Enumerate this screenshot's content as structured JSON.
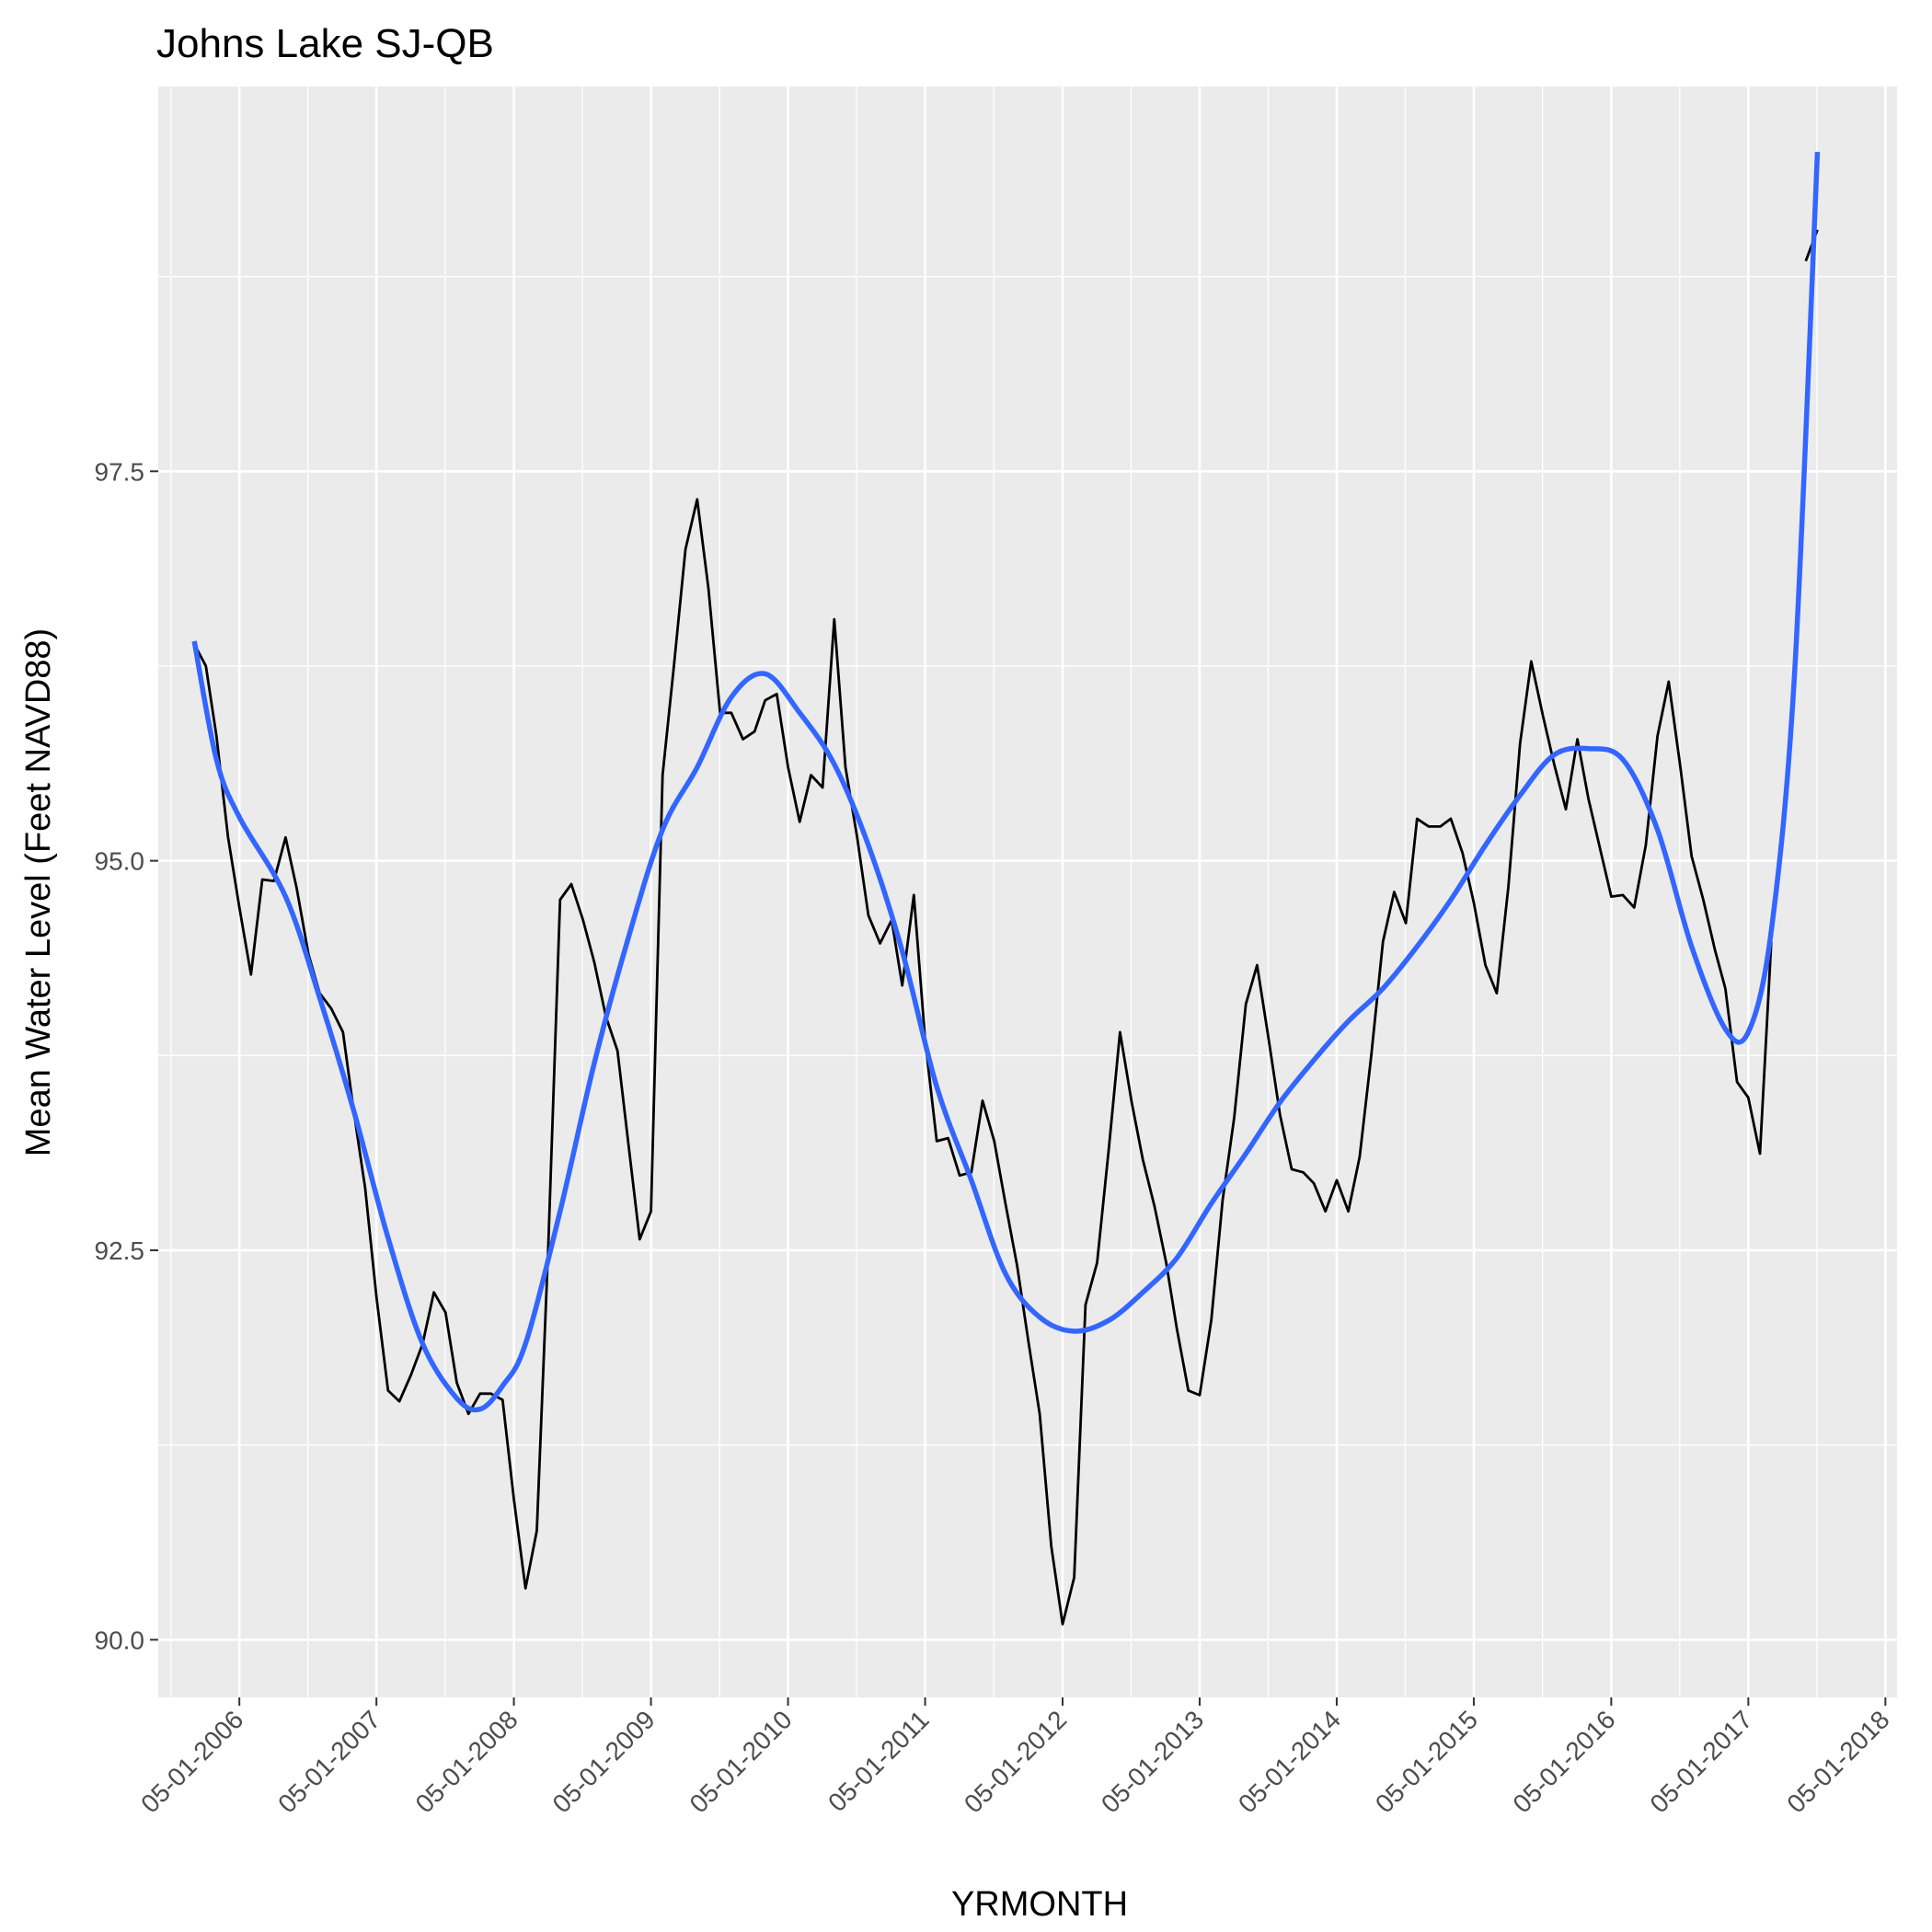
{
  "chart_data": {
    "type": "line",
    "title": "Johns Lake SJ-QB",
    "xlabel": "YRMONTH",
    "ylabel": "Mean Water Level (Feet NAVD88)",
    "x_range": [
      "2005-09-27",
      "2018-06-01"
    ],
    "ylim": [
      89.63,
      99.97
    ],
    "yticks": [
      90.0,
      92.5,
      95.0,
      97.5
    ],
    "xticks": [
      {
        "date": "2006-05-01",
        "label": "05-01-2006"
      },
      {
        "date": "2007-05-01",
        "label": "05-01-2007"
      },
      {
        "date": "2008-05-01",
        "label": "05-01-2008"
      },
      {
        "date": "2009-05-01",
        "label": "05-01-2009"
      },
      {
        "date": "2010-05-01",
        "label": "05-01-2010"
      },
      {
        "date": "2011-05-01",
        "label": "05-01-2011"
      },
      {
        "date": "2012-05-01",
        "label": "05-01-2012"
      },
      {
        "date": "2013-05-01",
        "label": "05-01-2013"
      },
      {
        "date": "2014-05-01",
        "label": "05-01-2014"
      },
      {
        "date": "2015-05-01",
        "label": "05-01-2015"
      },
      {
        "date": "2016-05-01",
        "label": "05-01-2016"
      },
      {
        "date": "2017-05-01",
        "label": "05-01-2017"
      },
      {
        "date": "2018-05-01",
        "label": "05-01-2018"
      }
    ],
    "grid": true,
    "background_color": "#EBEBEB",
    "series": [
      {
        "color": "#000000",
        "style": "line",
        "segments": [
          [
            [
              "2006-01-01",
              96.39
            ],
            [
              "2006-02-01",
              96.25
            ],
            [
              "2006-03-01",
              95.8
            ],
            [
              "2006-04-01",
              95.15
            ],
            [
              "2006-05-01",
              94.7
            ],
            [
              "2006-06-01",
              94.27
            ],
            [
              "2006-07-01",
              94.88
            ],
            [
              "2006-08-01",
              94.87
            ],
            [
              "2006-09-01",
              95.15
            ],
            [
              "2006-10-01",
              94.82
            ],
            [
              "2006-11-01",
              94.4
            ],
            [
              "2006-12-01",
              94.15
            ],
            [
              "2007-01-01",
              94.05
            ],
            [
              "2007-02-01",
              93.9
            ],
            [
              "2007-03-01",
              93.4
            ],
            [
              "2007-04-01",
              92.9
            ],
            [
              "2007-05-01",
              92.2
            ],
            [
              "2007-06-01",
              91.6
            ],
            [
              "2007-07-01",
              91.53
            ],
            [
              "2007-08-01",
              91.7
            ],
            [
              "2007-09-01",
              91.9
            ],
            [
              "2007-10-01",
              92.23
            ],
            [
              "2007-11-01",
              92.1
            ],
            [
              "2007-12-01",
              91.65
            ],
            [
              "2008-01-01",
              91.45
            ],
            [
              "2008-02-01",
              91.58
            ],
            [
              "2008-03-01",
              91.58
            ],
            [
              "2008-04-01",
              91.54
            ],
            [
              "2008-05-01",
              90.9
            ],
            [
              "2008-06-01",
              90.33
            ],
            [
              "2008-07-01",
              90.7
            ],
            [
              "2008-08-01",
              92.55
            ],
            [
              "2008-09-01",
              94.75
            ],
            [
              "2008-10-01",
              94.85
            ],
            [
              "2008-11-01",
              94.62
            ],
            [
              "2008-12-01",
              94.35
            ],
            [
              "2009-01-01",
              94.0
            ],
            [
              "2009-02-01",
              93.78
            ],
            [
              "2009-03-01",
              93.2
            ],
            [
              "2009-04-01",
              92.57
            ],
            [
              "2009-05-01",
              92.75
            ],
            [
              "2009-06-01",
              95.55
            ],
            [
              "2009-07-01",
              96.25
            ],
            [
              "2009-08-01",
              97.0
            ],
            [
              "2009-09-01",
              97.32
            ],
            [
              "2009-10-01",
              96.75
            ],
            [
              "2009-11-01",
              95.95
            ],
            [
              "2009-12-01",
              95.95
            ],
            [
              "2010-01-01",
              95.78
            ],
            [
              "2010-02-01",
              95.83
            ],
            [
              "2010-03-01",
              96.03
            ],
            [
              "2010-04-01",
              96.07
            ],
            [
              "2010-05-01",
              95.6
            ],
            [
              "2010-06-01",
              95.25
            ],
            [
              "2010-07-01",
              95.55
            ],
            [
              "2010-08-01",
              95.47
            ],
            [
              "2010-09-01",
              96.55
            ],
            [
              "2010-10-01",
              95.6
            ],
            [
              "2010-11-01",
              95.15
            ],
            [
              "2010-12-01",
              94.65
            ],
            [
              "2011-01-01",
              94.47
            ],
            [
              "2011-02-01",
              94.62
            ],
            [
              "2011-03-01",
              94.2
            ],
            [
              "2011-04-01",
              94.78
            ],
            [
              "2011-05-01",
              93.85
            ],
            [
              "2011-06-01",
              93.2
            ],
            [
              "2011-07-01",
              93.22
            ],
            [
              "2011-08-01",
              92.98
            ],
            [
              "2011-09-01",
              93.0
            ],
            [
              "2011-10-01",
              93.46
            ],
            [
              "2011-11-01",
              93.2
            ],
            [
              "2011-12-01",
              92.8
            ],
            [
              "2012-01-01",
              92.4
            ],
            [
              "2012-02-01",
              91.9
            ],
            [
              "2012-03-01",
              91.45
            ],
            [
              "2012-04-01",
              90.6
            ],
            [
              "2012-05-01",
              90.1
            ],
            [
              "2012-06-01",
              90.4
            ],
            [
              "2012-07-01",
              92.15
            ],
            [
              "2012-08-01",
              92.42
            ],
            [
              "2012-09-01",
              93.15
            ],
            [
              "2012-10-01",
              93.9
            ],
            [
              "2012-11-01",
              93.45
            ],
            [
              "2012-12-01",
              93.08
            ],
            [
              "2013-01-01",
              92.78
            ],
            [
              "2013-02-01",
              92.42
            ],
            [
              "2013-03-01",
              92.0
            ],
            [
              "2013-04-01",
              91.6
            ],
            [
              "2013-05-01",
              91.57
            ],
            [
              "2013-06-01",
              92.05
            ],
            [
              "2013-07-01",
              92.82
            ],
            [
              "2013-08-01",
              93.35
            ],
            [
              "2013-09-01",
              94.08
            ],
            [
              "2013-10-01",
              94.33
            ],
            [
              "2013-11-01",
              93.85
            ],
            [
              "2013-12-01",
              93.37
            ],
            [
              "2014-01-01",
              93.02
            ],
            [
              "2014-02-01",
              93.0
            ],
            [
              "2014-03-01",
              92.93
            ],
            [
              "2014-04-01",
              92.75
            ],
            [
              "2014-05-01",
              92.95
            ],
            [
              "2014-06-01",
              92.75
            ],
            [
              "2014-07-01",
              93.1
            ],
            [
              "2014-08-01",
              93.75
            ],
            [
              "2014-09-01",
              94.48
            ],
            [
              "2014-10-01",
              94.8
            ],
            [
              "2014-11-01",
              94.6
            ],
            [
              "2014-12-01",
              95.27
            ],
            [
              "2015-01-01",
              95.22
            ],
            [
              "2015-02-01",
              95.22
            ],
            [
              "2015-03-01",
              95.27
            ],
            [
              "2015-04-01",
              95.05
            ],
            [
              "2015-05-01",
              94.73
            ],
            [
              "2015-06-01",
              94.33
            ],
            [
              "2015-07-01",
              94.15
            ],
            [
              "2015-08-01",
              94.83
            ],
            [
              "2015-09-01",
              95.75
            ],
            [
              "2015-10-01",
              96.28
            ],
            [
              "2015-11-01",
              95.93
            ],
            [
              "2015-12-01",
              95.62
            ],
            [
              "2016-01-01",
              95.33
            ],
            [
              "2016-02-01",
              95.78
            ],
            [
              "2016-03-01",
              95.4
            ],
            [
              "2016-04-01",
              95.08
            ],
            [
              "2016-05-01",
              94.77
            ],
            [
              "2016-06-01",
              94.78
            ],
            [
              "2016-07-01",
              94.7
            ],
            [
              "2016-08-01",
              95.1
            ],
            [
              "2016-09-01",
              95.8
            ],
            [
              "2016-10-01",
              96.15
            ],
            [
              "2016-11-01",
              95.6
            ],
            [
              "2016-12-01",
              95.03
            ],
            [
              "2017-01-01",
              94.75
            ],
            [
              "2017-02-01",
              94.43
            ],
            [
              "2017-03-01",
              94.18
            ],
            [
              "2017-04-01",
              93.58
            ],
            [
              "2017-05-01",
              93.48
            ],
            [
              "2017-06-01",
              93.12
            ],
            [
              "2017-07-01",
              94.48
            ]
          ],
          [
            [
              "2017-10-01",
              98.85
            ],
            [
              "2017-11-01",
              99.05
            ]
          ]
        ]
      },
      {
        "color": "#3366FF",
        "style": "smooth",
        "points": [
          [
            "2006-01-01",
            96.41
          ],
          [
            "2006-03-01",
            95.65
          ],
          [
            "2006-05-01",
            95.28
          ],
          [
            "2006-09-01",
            94.77
          ],
          [
            "2006-12-01",
            94.12
          ],
          [
            "2007-03-01",
            93.4
          ],
          [
            "2007-06-01",
            92.58
          ],
          [
            "2007-09-01",
            91.9
          ],
          [
            "2007-12-01",
            91.55
          ],
          [
            "2008-02-01",
            91.48
          ],
          [
            "2008-04-01",
            91.63
          ],
          [
            "2008-06-01",
            91.9
          ],
          [
            "2008-09-01",
            92.75
          ],
          [
            "2008-12-01",
            93.7
          ],
          [
            "2009-03-01",
            94.5
          ],
          [
            "2009-06-01",
            95.2
          ],
          [
            "2009-09-01",
            95.6
          ],
          [
            "2009-12-01",
            96.05
          ],
          [
            "2010-03-01",
            96.2
          ],
          [
            "2010-06-01",
            95.95
          ],
          [
            "2010-09-01",
            95.62
          ],
          [
            "2010-12-01",
            95.1
          ],
          [
            "2011-03-01",
            94.42
          ],
          [
            "2011-06-01",
            93.55
          ],
          [
            "2011-09-01",
            92.95
          ],
          [
            "2011-12-01",
            92.35
          ],
          [
            "2012-03-01",
            92.07
          ],
          [
            "2012-06-01",
            91.98
          ],
          [
            "2012-09-01",
            92.05
          ],
          [
            "2012-12-01",
            92.23
          ],
          [
            "2013-03-01",
            92.45
          ],
          [
            "2013-06-01",
            92.8
          ],
          [
            "2013-09-01",
            93.12
          ],
          [
            "2013-12-01",
            93.45
          ],
          [
            "2014-03-01",
            93.72
          ],
          [
            "2014-06-01",
            93.97
          ],
          [
            "2014-09-01",
            94.18
          ],
          [
            "2014-12-01",
            94.45
          ],
          [
            "2015-03-01",
            94.75
          ],
          [
            "2015-06-01",
            95.1
          ],
          [
            "2015-09-01",
            95.42
          ],
          [
            "2015-12-01",
            95.68
          ],
          [
            "2016-03-01",
            95.72
          ],
          [
            "2016-06-01",
            95.65
          ],
          [
            "2016-09-01",
            95.2
          ],
          [
            "2016-12-01",
            94.45
          ],
          [
            "2017-03-01",
            93.92
          ],
          [
            "2017-05-01",
            93.9
          ],
          [
            "2017-07-01",
            94.55
          ],
          [
            "2017-09-01",
            96.2
          ],
          [
            "2017-11-01",
            99.55
          ]
        ]
      }
    ]
  }
}
